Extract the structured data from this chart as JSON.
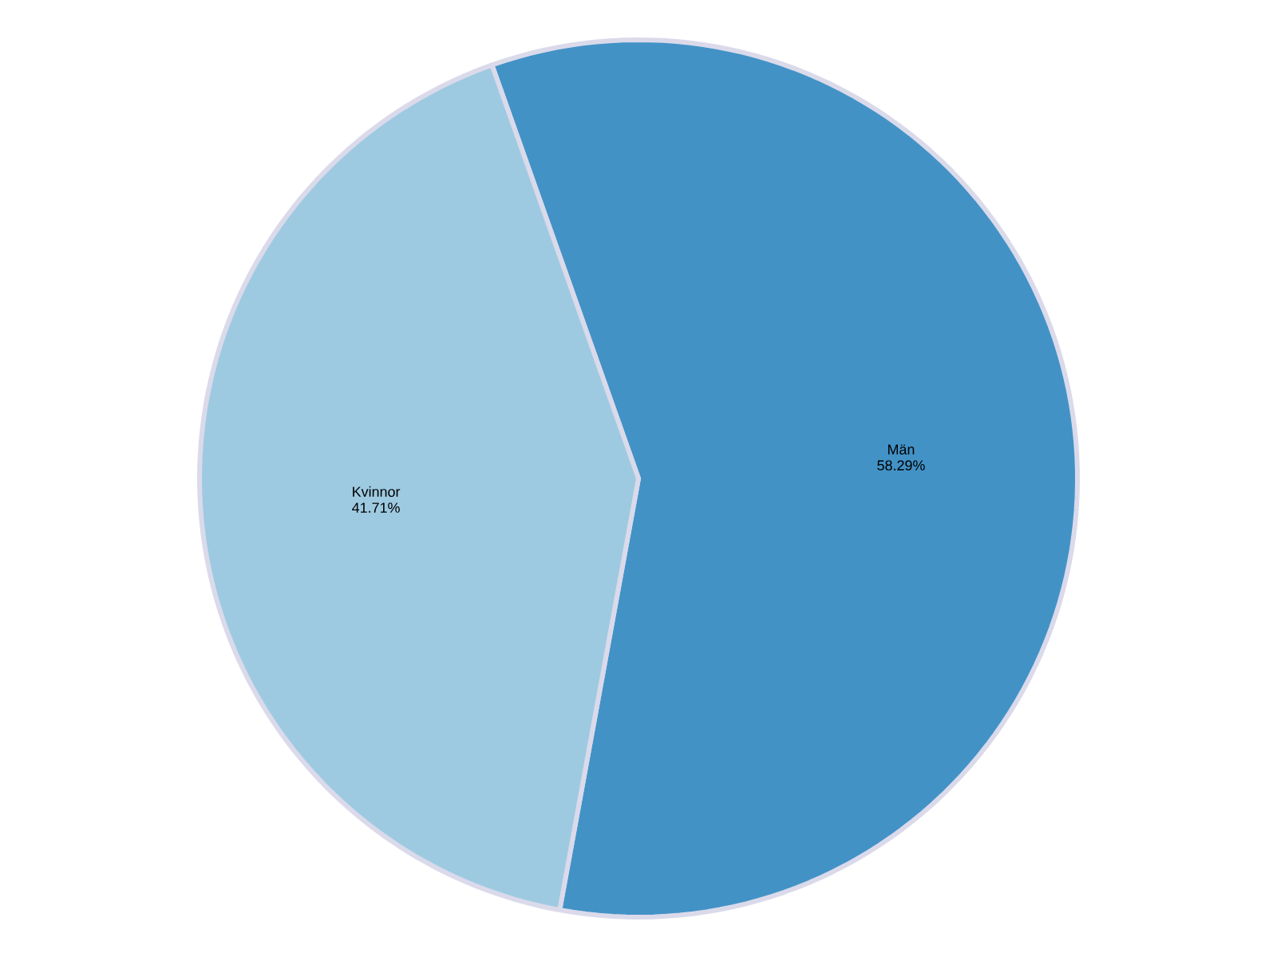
{
  "chart_data": {
    "type": "pie",
    "categories": [
      "Män",
      "Kvinnor"
    ],
    "values": [
      58.29,
      41.71
    ],
    "colors": [
      "#4292c6",
      "#9ecae1"
    ],
    "value_labels": [
      "58.29%",
      "41.71%"
    ]
  }
}
